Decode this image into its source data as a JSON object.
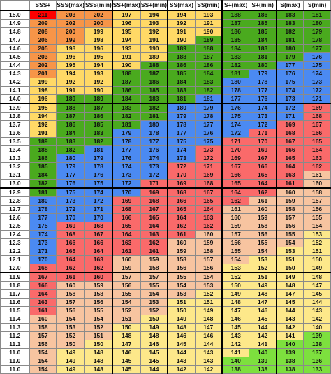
{
  "colors": {
    "red": "#fe0000",
    "orange": "#f79548",
    "yellow": "#ffd966",
    "green": "#4aaa1e",
    "blue": "#4b8af2",
    "salmon": "#fa6a6a",
    "peach": "#f7c4a0",
    "lightyellow": "#fde88a",
    "lime": "#7de03e"
  },
  "header": [
    "",
    "SSS+",
    "SSS(max)",
    "SSS(min)",
    "SS+(max)",
    "SS+(min)",
    "SS(max)",
    "SS(min)",
    "S+(max)",
    "S+(min)",
    "S(max)",
    "S(min)"
  ],
  "rows": [
    {
      "label": "15.0",
      "values": [
        "211",
        "203",
        "202",
        "197",
        "194",
        "194",
        "193",
        "188",
        "186",
        "183",
        "181"
      ],
      "colors": [
        "red",
        "orange",
        "orange",
        "yellow",
        "yellow",
        "yellow",
        "yellow",
        "green",
        "green",
        "green",
        "green"
      ]
    },
    {
      "label": "14.9",
      "values": [
        "209",
        "202",
        "200",
        "196",
        "193",
        "192",
        "191",
        "187",
        "185",
        "183",
        "180"
      ],
      "colors": [
        "orange",
        "orange",
        "orange",
        "yellow",
        "yellow",
        "yellow",
        "yellow",
        "green",
        "green",
        "green",
        "green"
      ]
    },
    {
      "label": "14.8",
      "values": [
        "208",
        "200",
        "199",
        "195",
        "192",
        "191",
        "190",
        "186",
        "185",
        "182",
        "179"
      ],
      "colors": [
        "orange",
        "orange",
        "yellow",
        "yellow",
        "yellow",
        "yellow",
        "yellow",
        "green",
        "green",
        "green",
        "green"
      ]
    },
    {
      "label": "14.7",
      "values": [
        "206",
        "199",
        "198",
        "194",
        "191",
        "190",
        "189",
        "185",
        "184",
        "181",
        "178"
      ],
      "colors": [
        "orange",
        "orange",
        "yellow",
        "yellow",
        "yellow",
        "yellow",
        "green",
        "green",
        "green",
        "green",
        "green"
      ]
    },
    {
      "label": "14.6",
      "values": [
        "205",
        "198",
        "196",
        "193",
        "190",
        "189",
        "188",
        "184",
        "183",
        "180",
        "177"
      ],
      "colors": [
        "orange",
        "yellow",
        "yellow",
        "yellow",
        "yellow",
        "green",
        "green",
        "green",
        "green",
        "green",
        "green"
      ]
    },
    {
      "label": "14.5",
      "values": [
        "203",
        "196",
        "195",
        "191",
        "189",
        "188",
        "187",
        "183",
        "181",
        "179",
        "176"
      ],
      "colors": [
        "orange",
        "yellow",
        "yellow",
        "yellow",
        "yellow",
        "green",
        "green",
        "green",
        "green",
        "green",
        "blue"
      ]
    },
    {
      "label": "14.4",
      "values": [
        "202",
        "195",
        "194",
        "190",
        "188",
        "186",
        "186",
        "182",
        "180",
        "177",
        "175"
      ],
      "colors": [
        "orange",
        "yellow",
        "yellow",
        "yellow",
        "green",
        "green",
        "green",
        "green",
        "green",
        "blue",
        "blue"
      ]
    },
    {
      "label": "14.3",
      "values": [
        "201",
        "194",
        "193",
        "188",
        "187",
        "185",
        "184",
        "181",
        "179",
        "176",
        "174"
      ],
      "colors": [
        "orange",
        "yellow",
        "yellow",
        "green",
        "green",
        "green",
        "green",
        "green",
        "blue",
        "blue",
        "blue"
      ]
    },
    {
      "label": "14.2",
      "values": [
        "199",
        "192",
        "192",
        "187",
        "186",
        "184",
        "183",
        "180",
        "178",
        "175",
        "173"
      ],
      "colors": [
        "yellow",
        "yellow",
        "yellow",
        "green",
        "green",
        "green",
        "green",
        "blue",
        "blue",
        "blue",
        "blue"
      ]
    },
    {
      "label": "14.1",
      "values": [
        "198",
        "191",
        "190",
        "186",
        "185",
        "183",
        "182",
        "178",
        "177",
        "174",
        "172"
      ],
      "colors": [
        "yellow",
        "yellow",
        "yellow",
        "green",
        "green",
        "green",
        "green",
        "blue",
        "blue",
        "blue",
        "blue"
      ]
    },
    {
      "label": "14.0",
      "values": [
        "196",
        "189",
        "189",
        "184",
        "183",
        "181",
        "181",
        "177",
        "176",
        "173",
        "171"
      ],
      "colors": [
        "yellow",
        "green",
        "green",
        "green",
        "green",
        "green",
        "blue",
        "blue",
        "blue",
        "blue",
        "blue"
      ],
      "blockEnd": true
    },
    {
      "label": "13.9",
      "values": [
        "195",
        "188",
        "187",
        "183",
        "182",
        "180",
        "179",
        "176",
        "174",
        "172",
        "169"
      ],
      "colors": [
        "yellow",
        "green",
        "green",
        "green",
        "green",
        "blue",
        "blue",
        "blue",
        "blue",
        "blue",
        "salmon"
      ]
    },
    {
      "label": "13.8",
      "values": [
        "194",
        "187",
        "186",
        "182",
        "181",
        "179",
        "178",
        "175",
        "173",
        "171",
        "168"
      ],
      "colors": [
        "yellow",
        "green",
        "green",
        "green",
        "green",
        "blue",
        "blue",
        "blue",
        "blue",
        "blue",
        "salmon"
      ]
    },
    {
      "label": "13.7",
      "values": [
        "192",
        "186",
        "185",
        "181",
        "180",
        "178",
        "177",
        "174",
        "172",
        "169",
        "167"
      ],
      "colors": [
        "yellow",
        "green",
        "green",
        "green",
        "blue",
        "blue",
        "blue",
        "blue",
        "blue",
        "salmon",
        "salmon"
      ]
    },
    {
      "label": "13.6",
      "values": [
        "191",
        "184",
        "183",
        "179",
        "178",
        "177",
        "176",
        "172",
        "171",
        "168",
        "166"
      ],
      "colors": [
        "yellow",
        "green",
        "green",
        "blue",
        "blue",
        "blue",
        "blue",
        "blue",
        "salmon",
        "salmon",
        "salmon"
      ]
    },
    {
      "label": "13.5",
      "values": [
        "189",
        "183",
        "182",
        "178",
        "177",
        "175",
        "175",
        "171",
        "170",
        "167",
        "165"
      ],
      "colors": [
        "green",
        "green",
        "green",
        "blue",
        "blue",
        "blue",
        "blue",
        "salmon",
        "salmon",
        "salmon",
        "salmon"
      ]
    },
    {
      "label": "13.4",
      "values": [
        "188",
        "182",
        "181",
        "177",
        "176",
        "174",
        "173",
        "170",
        "169",
        "166",
        "164"
      ],
      "colors": [
        "green",
        "green",
        "blue",
        "blue",
        "blue",
        "blue",
        "salmon",
        "salmon",
        "salmon",
        "salmon",
        "salmon"
      ]
    },
    {
      "label": "13.3",
      "values": [
        "186",
        "180",
        "179",
        "176",
        "174",
        "173",
        "172",
        "169",
        "167",
        "165",
        "163"
      ],
      "colors": [
        "green",
        "blue",
        "blue",
        "blue",
        "blue",
        "blue",
        "salmon",
        "salmon",
        "salmon",
        "salmon",
        "salmon"
      ]
    },
    {
      "label": "13.2",
      "values": [
        "185",
        "179",
        "178",
        "174",
        "173",
        "172",
        "171",
        "167",
        "166",
        "164",
        "162"
      ],
      "colors": [
        "green",
        "blue",
        "blue",
        "blue",
        "blue",
        "salmon",
        "salmon",
        "salmon",
        "salmon",
        "salmon",
        "salmon"
      ]
    },
    {
      "label": "13.1",
      "values": [
        "184",
        "177",
        "176",
        "173",
        "172",
        "170",
        "169",
        "166",
        "165",
        "163",
        "161"
      ],
      "colors": [
        "green",
        "blue",
        "blue",
        "blue",
        "blue",
        "salmon",
        "salmon",
        "salmon",
        "salmon",
        "salmon",
        "peach"
      ]
    },
    {
      "label": "13.0",
      "values": [
        "182",
        "176",
        "175",
        "172",
        "171",
        "169",
        "168",
        "165",
        "164",
        "161",
        "160"
      ],
      "colors": [
        "green",
        "blue",
        "blue",
        "blue",
        "salmon",
        "salmon",
        "salmon",
        "salmon",
        "salmon",
        "salmon",
        "peach"
      ],
      "blockEnd": true
    },
    {
      "label": "12.9",
      "values": [
        "181",
        "175",
        "174",
        "170",
        "169",
        "168",
        "167",
        "164",
        "162",
        "160",
        "158"
      ],
      "colors": [
        "green",
        "blue",
        "blue",
        "blue",
        "salmon",
        "salmon",
        "salmon",
        "salmon",
        "salmon",
        "peach",
        "peach"
      ]
    },
    {
      "label": "12.8",
      "values": [
        "180",
        "173",
        "172",
        "169",
        "168",
        "166",
        "165",
        "162",
        "161",
        "159",
        "157"
      ],
      "colors": [
        "blue",
        "blue",
        "blue",
        "salmon",
        "salmon",
        "salmon",
        "salmon",
        "salmon",
        "peach",
        "peach",
        "peach"
      ]
    },
    {
      "label": "12.7",
      "values": [
        "178",
        "172",
        "171",
        "168",
        "167",
        "165",
        "164",
        "161",
        "160",
        "158",
        "156"
      ],
      "colors": [
        "blue",
        "blue",
        "blue",
        "salmon",
        "salmon",
        "salmon",
        "salmon",
        "peach",
        "peach",
        "peach",
        "peach"
      ]
    },
    {
      "label": "12.6",
      "values": [
        "177",
        "170",
        "170",
        "166",
        "165",
        "164",
        "163",
        "160",
        "159",
        "157",
        "155"
      ],
      "colors": [
        "blue",
        "blue",
        "blue",
        "salmon",
        "salmon",
        "salmon",
        "salmon",
        "peach",
        "peach",
        "peach",
        "peach"
      ]
    },
    {
      "label": "12.5",
      "values": [
        "175",
        "169",
        "168",
        "165",
        "164",
        "162",
        "162",
        "159",
        "158",
        "156",
        "154"
      ],
      "colors": [
        "blue",
        "salmon",
        "salmon",
        "salmon",
        "salmon",
        "salmon",
        "salmon",
        "peach",
        "peach",
        "peach",
        "peach"
      ]
    },
    {
      "label": "12.4",
      "values": [
        "174",
        "168",
        "167",
        "164",
        "163",
        "161",
        "160",
        "157",
        "156",
        "155",
        "153"
      ],
      "colors": [
        "blue",
        "salmon",
        "salmon",
        "salmon",
        "salmon",
        "salmon",
        "peach",
        "peach",
        "peach",
        "peach",
        "lightyellow"
      ]
    },
    {
      "label": "12.3",
      "values": [
        "173",
        "166",
        "166",
        "163",
        "162",
        "160",
        "159",
        "156",
        "155",
        "154",
        "152"
      ],
      "colors": [
        "blue",
        "salmon",
        "salmon",
        "salmon",
        "salmon",
        "peach",
        "peach",
        "peach",
        "peach",
        "peach",
        "lightyellow"
      ]
    },
    {
      "label": "12.2",
      "values": [
        "171",
        "165",
        "164",
        "161",
        "161",
        "159",
        "158",
        "155",
        "154",
        "153",
        "151"
      ],
      "colors": [
        "blue",
        "salmon",
        "salmon",
        "salmon",
        "salmon",
        "peach",
        "peach",
        "peach",
        "peach",
        "lightyellow",
        "lightyellow"
      ]
    },
    {
      "label": "12.1",
      "values": [
        "170",
        "164",
        "163",
        "160",
        "159",
        "158",
        "157",
        "154",
        "153",
        "151",
        "150"
      ],
      "colors": [
        "blue",
        "salmon",
        "salmon",
        "peach",
        "peach",
        "peach",
        "peach",
        "peach",
        "lightyellow",
        "lightyellow",
        "lightyellow"
      ]
    },
    {
      "label": "12.0",
      "values": [
        "168",
        "162",
        "162",
        "159",
        "158",
        "156",
        "156",
        "153",
        "152",
        "150",
        "149"
      ],
      "colors": [
        "salmon",
        "salmon",
        "salmon",
        "peach",
        "peach",
        "peach",
        "peach",
        "lightyellow",
        "lightyellow",
        "lightyellow",
        "lightyellow"
      ],
      "blockEnd": true
    },
    {
      "label": "11.9",
      "values": [
        "167",
        "161",
        "160",
        "157",
        "157",
        "155",
        "154",
        "152",
        "151",
        "149",
        "148"
      ],
      "colors": [
        "salmon",
        "salmon",
        "salmon",
        "peach",
        "peach",
        "peach",
        "peach",
        "lightyellow",
        "lightyellow",
        "lightyellow",
        "lightyellow"
      ]
    },
    {
      "label": "11.8",
      "values": [
        "166",
        "160",
        "159",
        "156",
        "155",
        "154",
        "153",
        "150",
        "149",
        "148",
        "147"
      ],
      "colors": [
        "salmon",
        "peach",
        "peach",
        "peach",
        "peach",
        "peach",
        "peach",
        "lightyellow",
        "lightyellow",
        "lightyellow",
        "lightyellow"
      ]
    },
    {
      "label": "11.7",
      "values": [
        "164",
        "158",
        "158",
        "155",
        "154",
        "153",
        "152",
        "149",
        "148",
        "147",
        "145"
      ],
      "colors": [
        "salmon",
        "peach",
        "peach",
        "peach",
        "peach",
        "peach",
        "lightyellow",
        "lightyellow",
        "lightyellow",
        "lightyellow",
        "lightyellow"
      ]
    },
    {
      "label": "11.6",
      "values": [
        "163",
        "157",
        "156",
        "154",
        "153",
        "151",
        "151",
        "148",
        "147",
        "145",
        "144"
      ],
      "colors": [
        "salmon",
        "peach",
        "peach",
        "peach",
        "peach",
        "lightyellow",
        "lightyellow",
        "lightyellow",
        "lightyellow",
        "lightyellow",
        "lightyellow"
      ]
    },
    {
      "label": "11.5",
      "values": [
        "161",
        "156",
        "155",
        "152",
        "152",
        "150",
        "149",
        "147",
        "146",
        "144",
        "143"
      ],
      "colors": [
        "salmon",
        "peach",
        "peach",
        "peach",
        "peach",
        "lightyellow",
        "lightyellow",
        "lightyellow",
        "lightyellow",
        "lightyellow",
        "lightyellow"
      ]
    },
    {
      "label": "11.4",
      "values": [
        "160",
        "154",
        "154",
        "151",
        "150",
        "149",
        "148",
        "146",
        "145",
        "143",
        "142"
      ],
      "colors": [
        "peach",
        "peach",
        "peach",
        "peach",
        "lightyellow",
        "lightyellow",
        "lightyellow",
        "lightyellow",
        "lightyellow",
        "lightyellow",
        "lightyellow"
      ]
    },
    {
      "label": "11.3",
      "values": [
        "158",
        "153",
        "152",
        "150",
        "149",
        "148",
        "147",
        "145",
        "144",
        "142",
        "140"
      ],
      "colors": [
        "peach",
        "peach",
        "peach",
        "lightyellow",
        "lightyellow",
        "lightyellow",
        "lightyellow",
        "lightyellow",
        "lightyellow",
        "lightyellow",
        "lightyellow"
      ]
    },
    {
      "label": "11.2",
      "values": [
        "157",
        "152",
        "151",
        "148",
        "148",
        "146",
        "146",
        "143",
        "142",
        "141",
        "139"
      ],
      "colors": [
        "peach",
        "peach",
        "peach",
        "lightyellow",
        "lightyellow",
        "lightyellow",
        "lightyellow",
        "lightyellow",
        "lightyellow",
        "lightyellow",
        "lime"
      ]
    },
    {
      "label": "11.1",
      "values": [
        "156",
        "150",
        "150",
        "147",
        "146",
        "145",
        "144",
        "142",
        "141",
        "140",
        "138"
      ],
      "colors": [
        "peach",
        "peach",
        "lightyellow",
        "lightyellow",
        "lightyellow",
        "lightyellow",
        "lightyellow",
        "lightyellow",
        "lightyellow",
        "lime",
        "lime"
      ]
    },
    {
      "label": "11.0",
      "values": [
        "154",
        "149",
        "148",
        "146",
        "145",
        "144",
        "143",
        "141",
        "140",
        "139",
        "137"
      ],
      "colors": [
        "peach",
        "lightyellow",
        "lightyellow",
        "lightyellow",
        "lightyellow",
        "lightyellow",
        "lightyellow",
        "lightyellow",
        "lime",
        "lime",
        "lime"
      ]
    },
    {
      "label": "11.0",
      "values": [
        "154",
        "149",
        "148",
        "145",
        "145",
        "143",
        "143",
        "140",
        "139",
        "138",
        "136"
      ],
      "colors": [
        "peach",
        "lightyellow",
        "lightyellow",
        "lightyellow",
        "lightyellow",
        "lightyellow",
        "lightyellow",
        "lime",
        "lime",
        "lime",
        "lime"
      ]
    },
    {
      "label": "11.0",
      "values": [
        "154",
        "149",
        "148",
        "145",
        "144",
        "142",
        "142",
        "138",
        "138",
        "138",
        "133"
      ],
      "colors": [
        "peach",
        "lightyellow",
        "lightyellow",
        "lightyellow",
        "lightyellow",
        "lightyellow",
        "lightyellow",
        "lime",
        "lime",
        "lime",
        "lime"
      ]
    }
  ]
}
